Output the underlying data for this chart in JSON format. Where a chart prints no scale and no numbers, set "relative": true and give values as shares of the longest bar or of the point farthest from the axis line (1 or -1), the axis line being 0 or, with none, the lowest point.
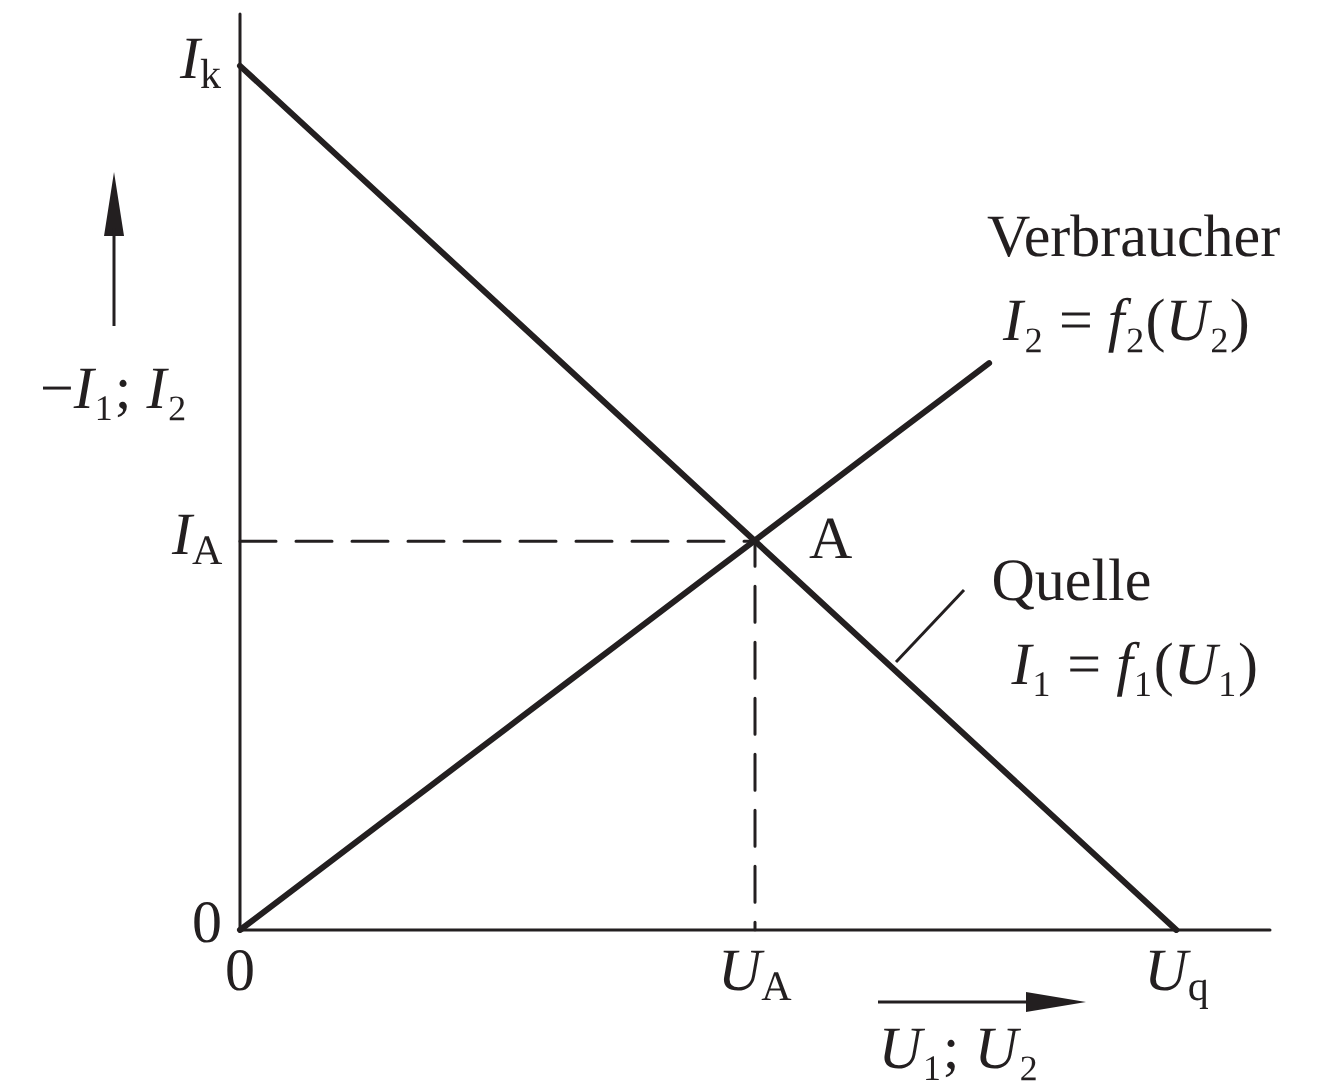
{
  "chart_data": {
    "type": "line",
    "relative": true,
    "xlabel": "U₁; U₂",
    "ylabel": "−I₁; I₂",
    "categories": [
      "0",
      null,
      null,
      null,
      null,
      null,
      null,
      null,
      null,
      null,
      null,
      "U$_{A}$",
      null,
      null,
      null,
      null,
      null,
      null,
      null,
      null,
      "U$_{q}$",
      null,
      null
    ],
    "marker": "none",
    "series": [
      {
        "name": "Verbraucher",
        "color": "#231f20",
        "values": [
          0,
          0.041,
          0.082,
          0.123,
          0.164,
          0.205,
          0.246,
          0.287,
          0.328,
          0.369,
          0.41,
          0.451,
          0.492,
          0.533,
          0.574,
          0.615,
          0.656,
          null,
          null,
          null,
          null,
          null,
          null
        ]
      },
      {
        "name": "Quelle",
        "color": "#231f20",
        "x": [
          "0",
          "U$_{q}$"
        ],
        "values": [
          1,
          0
        ]
      },
      {
        "color": "#231f20",
        "line_style": "dashed",
        "x": [
          "0",
          "U$_{A}$",
          "U$_{A}$"
        ],
        "values": [
          0.45,
          0.45,
          0
        ]
      }
    ],
    "annotations": [
      {
        "text": "I$_{k}$",
        "x": "0",
        "y": 1
      },
      {
        "text": "I$_{A}$",
        "x": "0",
        "y": 0.45
      },
      {
        "text": "0",
        "x": "0",
        "y": 0
      },
      {
        "text": "A",
        "x": "U$_{A}$",
        "y": 0.45
      },
      "I₂ = f₂(U₂)",
      "I₁ = f₁(U₁)"
    ]
  }
}
